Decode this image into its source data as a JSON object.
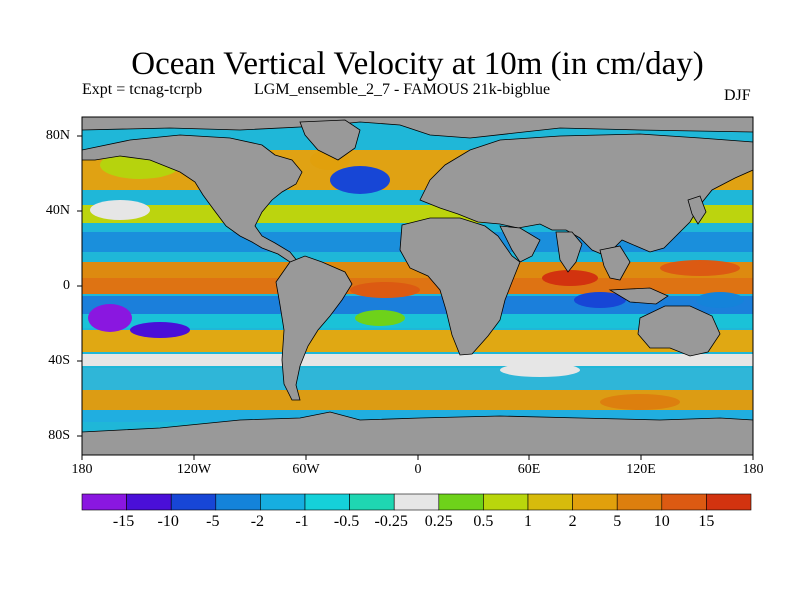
{
  "title": "Ocean Vertical Velocity at 10m (in cm/day)",
  "subtitle_left": "Expt = tcnag-tcrpb",
  "subtitle_mid": "LGM_ensemble_2_7 - FAMOUS 21k-bigblue",
  "subtitle_right": "DJF",
  "y_ticks": [
    "80N",
    "40N",
    "0",
    "40S",
    "80S"
  ],
  "x_ticks": [
    "180",
    "120W",
    "60W",
    "0",
    "60E",
    "120E",
    "180"
  ],
  "colorbar": {
    "labels": [
      "-15",
      "-10",
      "-5",
      "-2",
      "-1",
      "-0.5",
      "-0.25",
      "0.25",
      "0.5",
      "1",
      "2",
      "5",
      "10",
      "15"
    ],
    "colors": [
      "#8a17e0",
      "#4a0fd8",
      "#1746d6",
      "#1483da",
      "#16aee0",
      "#15d1d9",
      "#1fd6b2",
      "#e6e6e6",
      "#6ed21a",
      "#b9d60c",
      "#d7bb0c",
      "#e1a00c",
      "#dd7f0e",
      "#dc5a12",
      "#d2330f"
    ]
  },
  "land_color": "#999999",
  "chart_data": {
    "type": "heatmap",
    "title": "Ocean Vertical Velocity at 10m (in cm/day)",
    "xlim": [
      -180,
      180
    ],
    "ylim": [
      -90,
      90
    ],
    "units": "cm/day",
    "levels": [
      -15,
      -10,
      -5,
      -2,
      -1,
      -0.5,
      -0.25,
      0.25,
      0.5,
      1,
      2,
      5,
      10,
      15
    ]
  }
}
